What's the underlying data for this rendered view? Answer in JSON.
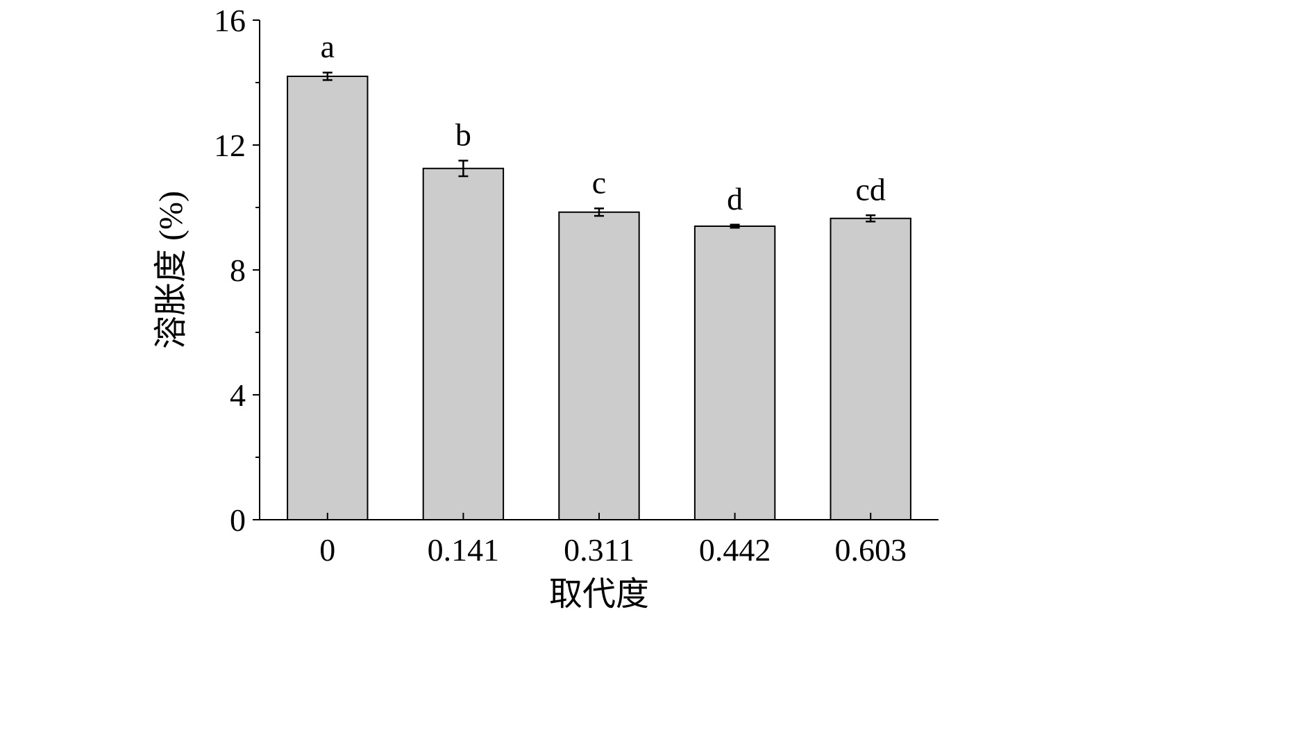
{
  "chart_data": {
    "type": "bar",
    "title": "",
    "xlabel": "取代度",
    "ylabel": "溶胀度 (%)",
    "categories": [
      "0",
      "0.141",
      "0.311",
      "0.442",
      "0.603"
    ],
    "values": [
      14.2,
      11.25,
      9.85,
      9.4,
      9.65
    ],
    "errors": [
      0.12,
      0.25,
      0.12,
      0.05,
      0.1
    ],
    "significance_letters": [
      "a",
      "b",
      "c",
      "d",
      "cd"
    ],
    "ylim": [
      0,
      16
    ],
    "y_ticks": [
      0,
      4,
      8,
      12,
      16
    ],
    "y_tick_labels": [
      "0",
      "4",
      "8",
      "12",
      "16"
    ],
    "grid": false,
    "legend": "none",
    "colors": {
      "bar_fill": "#cccccc",
      "bar_stroke": "#000000",
      "axis": "#000000"
    }
  }
}
